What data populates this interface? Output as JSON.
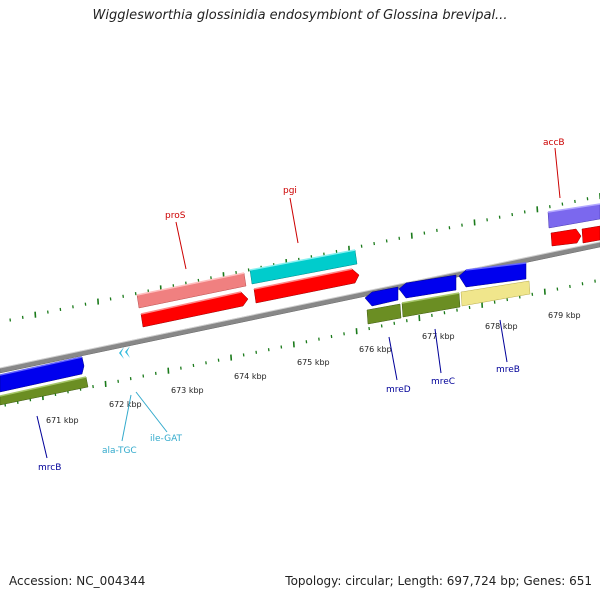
{
  "header": {
    "title": "Wigglesworthia glossinidia endosymbiont of Glossina brevipal..."
  },
  "footer": {
    "accession": "Accession: NC_004344",
    "summary": "Topology: circular; Length: 697,724 bp; Genes: 651"
  },
  "axis": {
    "ticks": [
      "671 kbp",
      "672 kbp",
      "673 kbp",
      "674 kbp",
      "675 kbp",
      "676 kbp",
      "677 kbp",
      "678 kbp",
      "679 kbp"
    ]
  },
  "genes": {
    "mrcB": "mrcB",
    "alaTGC": "ala-TGC",
    "ileGAT": "ile-GAT",
    "proS": "proS",
    "pgi": "pgi",
    "mreD": "mreD",
    "mreC": "mreC",
    "mreB": "mreB",
    "accB": "accB"
  },
  "colors": {
    "cds_red": "#ff0000",
    "cds_blue": "#0000ee",
    "cds_cyan": "#00cccc",
    "cds_green": "#6b8e23",
    "cds_pink": "#f08080",
    "cds_yellow": "#f0e68c",
    "cds_purple": "#7b68ee",
    "trna_cyan": "#33bbdd",
    "tick_green": "#1a7a1a",
    "label_red": "#cc0000",
    "label_blue": "#000099",
    "label_cyan": "#33aacc"
  }
}
